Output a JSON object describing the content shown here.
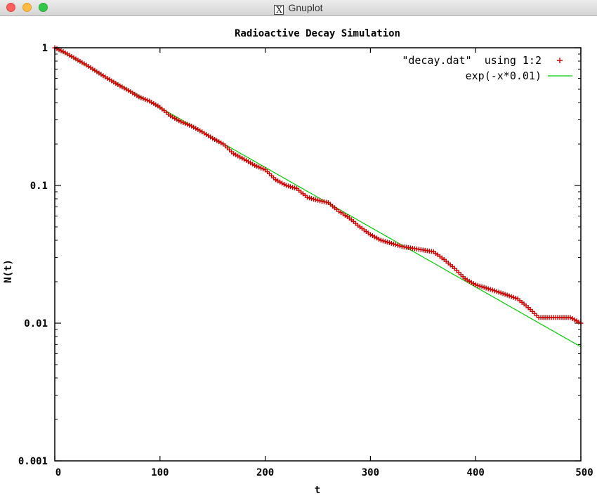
{
  "window": {
    "title": "Gnuplot",
    "title_icon": "x11-icon"
  },
  "chart_data": {
    "type": "scatter",
    "title": "Radioactive Decay Simulation",
    "xlabel": "t",
    "ylabel": "N(t)",
    "xlim": [
      0,
      500
    ],
    "ylim": [
      0.001,
      1
    ],
    "yscale": "log",
    "grid": false,
    "legend_position": "top-right",
    "x_ticks": [
      "0",
      "100",
      "200",
      "300",
      "400",
      "500"
    ],
    "y_ticks": [
      "1",
      "0.1",
      "0.01",
      "0.001"
    ],
    "series": [
      {
        "name": "\"decay.dat\"  using 1:2",
        "kind": "points",
        "color": "#cc0000",
        "marker": "plus",
        "x": [
          0,
          10,
          20,
          30,
          40,
          50,
          60,
          70,
          80,
          90,
          100,
          110,
          120,
          130,
          140,
          150,
          160,
          170,
          180,
          190,
          200,
          210,
          220,
          230,
          240,
          250,
          260,
          270,
          280,
          290,
          300,
          310,
          320,
          330,
          340,
          350,
          360,
          370,
          380,
          390,
          400,
          410,
          420,
          430,
          440,
          450,
          460,
          470,
          480,
          490,
          500
        ],
        "y": [
          1.0,
          0.92,
          0.83,
          0.75,
          0.67,
          0.6,
          0.54,
          0.49,
          0.44,
          0.41,
          0.37,
          0.32,
          0.29,
          0.27,
          0.245,
          0.22,
          0.2,
          0.17,
          0.155,
          0.14,
          0.13,
          0.11,
          0.1,
          0.095,
          0.082,
          0.078,
          0.075,
          0.065,
          0.058,
          0.05,
          0.044,
          0.04,
          0.038,
          0.036,
          0.035,
          0.034,
          0.033,
          0.029,
          0.025,
          0.021,
          0.019,
          0.018,
          0.017,
          0.016,
          0.015,
          0.013,
          0.011,
          0.011,
          0.011,
          0.011,
          0.01
        ]
      },
      {
        "name": "exp(-x*0.01)",
        "kind": "line",
        "color": "#00cc00",
        "decay_constant": 0.01
      }
    ]
  }
}
